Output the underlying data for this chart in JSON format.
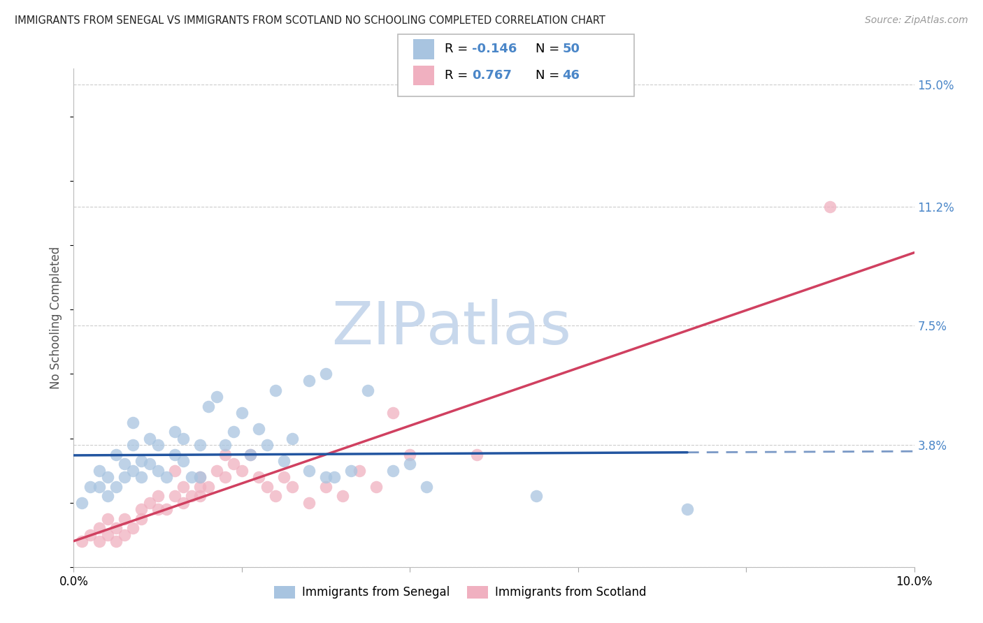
{
  "title": "IMMIGRANTS FROM SENEGAL VS IMMIGRANTS FROM SCOTLAND NO SCHOOLING COMPLETED CORRELATION CHART",
  "source": "Source: ZipAtlas.com",
  "ylabel": "No Schooling Completed",
  "xlim": [
    0.0,
    0.1
  ],
  "ylim": [
    0.0,
    0.155
  ],
  "xticks": [
    0.0,
    0.02,
    0.04,
    0.06,
    0.08,
    0.1
  ],
  "xticklabels": [
    "0.0%",
    "",
    "",
    "",
    "",
    "10.0%"
  ],
  "ytick_positions": [
    0.0,
    0.038,
    0.075,
    0.112,
    0.15
  ],
  "ytick_labels": [
    "",
    "3.8%",
    "7.5%",
    "11.2%",
    "15.0%"
  ],
  "senegal_color": "#a8c4e0",
  "senegal_line_color": "#2255a0",
  "scotland_color": "#f0b0c0",
  "scotland_line_color": "#d04060",
  "senegal_label": "Immigrants from Senegal",
  "scotland_label": "Immigrants from Scotland",
  "senegal_R": "-0.146",
  "senegal_N": "50",
  "scotland_R": "0.767",
  "scotland_N": "46",
  "watermark_zip": "ZIP",
  "watermark_atlas": "atlas",
  "watermark_color_zip": "#c8d8ec",
  "watermark_color_atlas": "#c8d8ec",
  "background_color": "#ffffff",
  "grid_color": "#cccccc",
  "title_color": "#222222",
  "ylabel_color": "#555555",
  "tick_color": "#4a86c8",
  "senegal_x": [
    0.001,
    0.002,
    0.003,
    0.003,
    0.004,
    0.004,
    0.005,
    0.005,
    0.006,
    0.006,
    0.007,
    0.007,
    0.007,
    0.008,
    0.008,
    0.009,
    0.009,
    0.01,
    0.01,
    0.011,
    0.012,
    0.012,
    0.013,
    0.013,
    0.014,
    0.015,
    0.015,
    0.016,
    0.017,
    0.018,
    0.019,
    0.02,
    0.021,
    0.022,
    0.023,
    0.024,
    0.025,
    0.026,
    0.028,
    0.03,
    0.031,
    0.033,
    0.035,
    0.038,
    0.04,
    0.042,
    0.028,
    0.03,
    0.055,
    0.073
  ],
  "senegal_y": [
    0.02,
    0.025,
    0.03,
    0.025,
    0.028,
    0.022,
    0.035,
    0.025,
    0.032,
    0.028,
    0.038,
    0.03,
    0.045,
    0.033,
    0.028,
    0.04,
    0.032,
    0.038,
    0.03,
    0.028,
    0.042,
    0.035,
    0.033,
    0.04,
    0.028,
    0.038,
    0.028,
    0.05,
    0.053,
    0.038,
    0.042,
    0.048,
    0.035,
    0.043,
    0.038,
    0.055,
    0.033,
    0.04,
    0.03,
    0.028,
    0.028,
    0.03,
    0.055,
    0.03,
    0.032,
    0.025,
    0.058,
    0.06,
    0.022,
    0.018
  ],
  "scotland_x": [
    0.001,
    0.002,
    0.003,
    0.003,
    0.004,
    0.004,
    0.005,
    0.005,
    0.006,
    0.006,
    0.007,
    0.008,
    0.008,
    0.009,
    0.01,
    0.01,
    0.011,
    0.012,
    0.013,
    0.013,
    0.014,
    0.015,
    0.015,
    0.016,
    0.017,
    0.018,
    0.019,
    0.02,
    0.021,
    0.022,
    0.023,
    0.024,
    0.025,
    0.026,
    0.028,
    0.03,
    0.032,
    0.034,
    0.036,
    0.038,
    0.04,
    0.012,
    0.015,
    0.018,
    0.048,
    0.09
  ],
  "scotland_y": [
    0.008,
    0.01,
    0.012,
    0.008,
    0.01,
    0.015,
    0.012,
    0.008,
    0.015,
    0.01,
    0.012,
    0.018,
    0.015,
    0.02,
    0.018,
    0.022,
    0.018,
    0.022,
    0.025,
    0.02,
    0.022,
    0.028,
    0.022,
    0.025,
    0.03,
    0.028,
    0.032,
    0.03,
    0.035,
    0.028,
    0.025,
    0.022,
    0.028,
    0.025,
    0.02,
    0.025,
    0.022,
    0.03,
    0.025,
    0.048,
    0.035,
    0.03,
    0.025,
    0.035,
    0.035,
    0.112
  ]
}
